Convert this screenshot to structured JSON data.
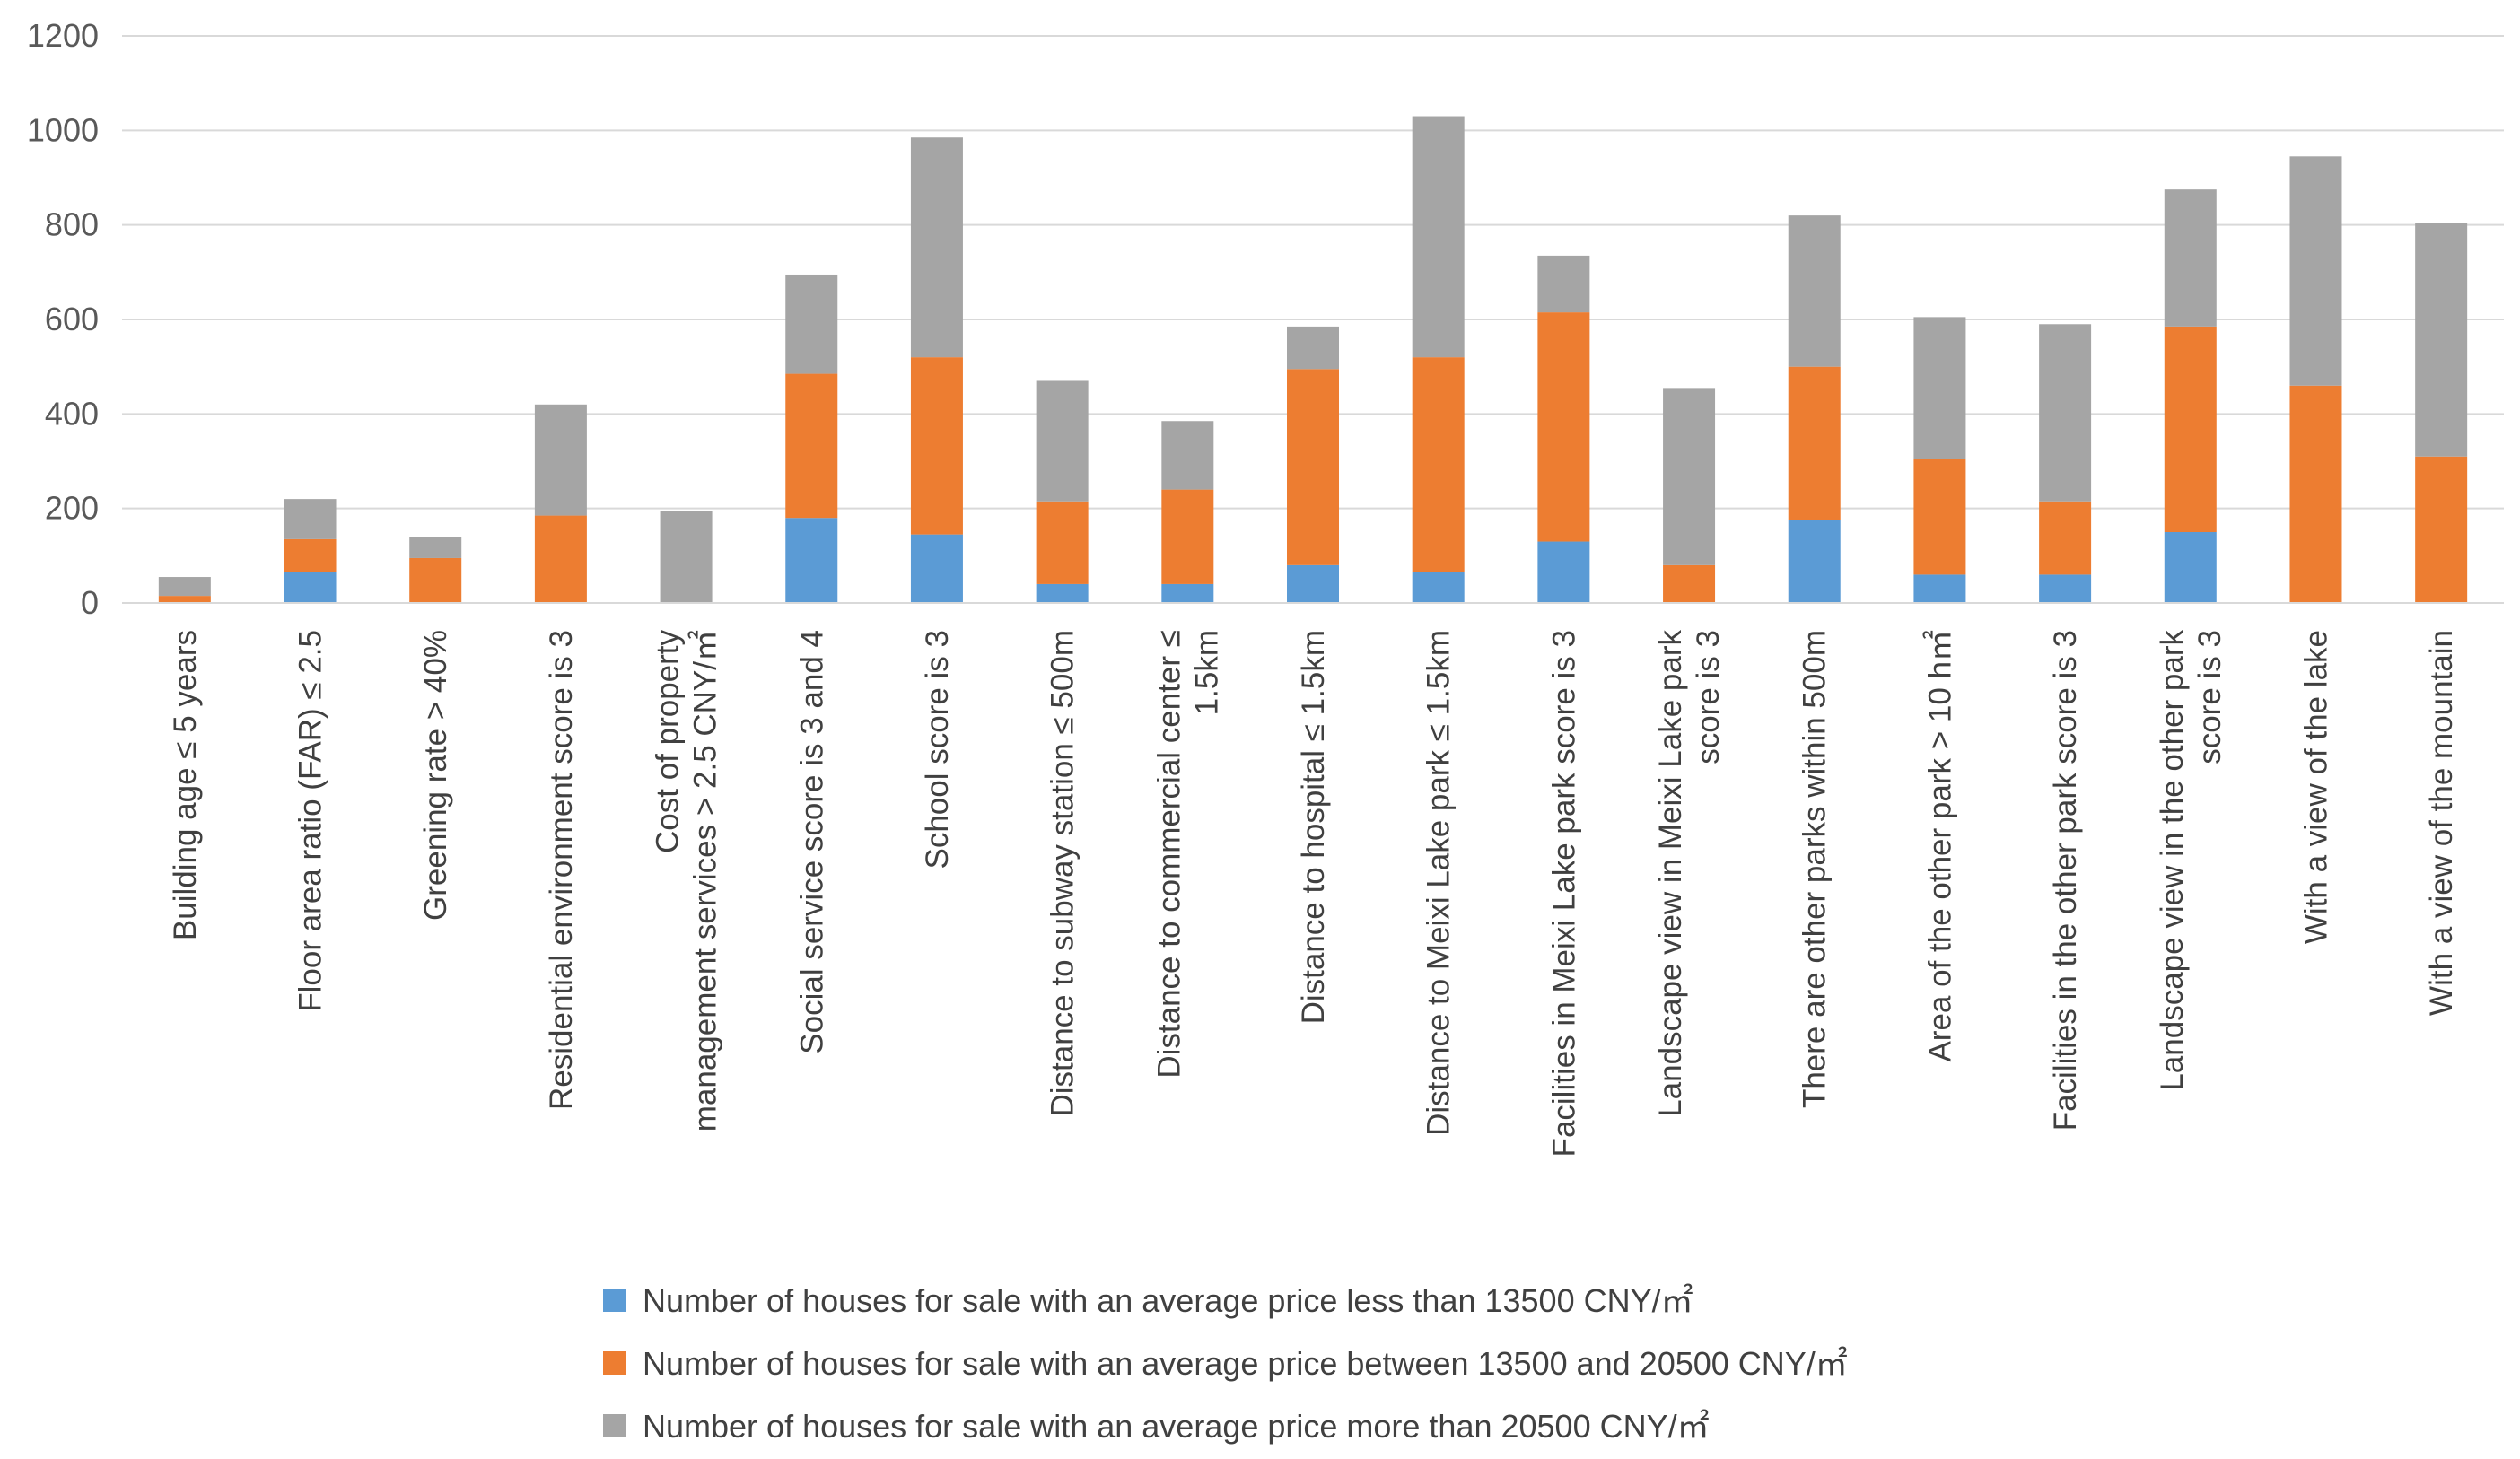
{
  "chart_data": {
    "type": "bar",
    "stacked": true,
    "title": "",
    "xlabel": "",
    "ylabel": "",
    "ylim": [
      0,
      1200
    ],
    "yticks": [
      0,
      200,
      400,
      600,
      800,
      1000,
      1200
    ],
    "grid": true,
    "legend_position": "bottom",
    "categories": [
      [
        "Building age ≤ 5 years"
      ],
      [
        "Floor area ratio (FAR) ≤ 2.5"
      ],
      [
        "Greening rate > 40%"
      ],
      [
        "Residential environment score is 3"
      ],
      [
        "Cost of property",
        "management services > 2.5 CNY/㎡"
      ],
      [
        "Social service score is 3 and 4"
      ],
      [
        "School score is 3"
      ],
      [
        "Distance to subway station ≤ 500m"
      ],
      [
        "Distance to commercial center ≤",
        "1.5km"
      ],
      [
        "Distance to hospital ≤ 1.5km"
      ],
      [
        "Distance to Meixi Lake park ≤ 1.5km"
      ],
      [
        "Facilities in Meixi Lake park score is 3"
      ],
      [
        "Landscape view in Meixi Lake park",
        "score is 3"
      ],
      [
        "There are other parks within 500m"
      ],
      [
        "Area of the other park > 10 h㎡"
      ],
      [
        "Facilities in the other park score is 3"
      ],
      [
        "Landscape view in the other park",
        "score is 3"
      ],
      [
        "With a view of the lake"
      ],
      [
        "With a view of the mountain"
      ]
    ],
    "series": [
      {
        "name": "Number of houses for sale with an average price less than 13500 CNY/㎡",
        "color": "#5B9BD5",
        "values": [
          0,
          65,
          0,
          0,
          0,
          180,
          145,
          40,
          40,
          80,
          65,
          130,
          0,
          175,
          60,
          60,
          150,
          0,
          0
        ]
      },
      {
        "name": "Number of houses for sale with an average price between 13500 and 20500 CNY/㎡",
        "color": "#ED7D31",
        "values": [
          15,
          70,
          95,
          185,
          0,
          305,
          375,
          175,
          200,
          415,
          455,
          485,
          80,
          325,
          245,
          155,
          435,
          460,
          310
        ]
      },
      {
        "name": "Number of houses for sale with an average price more than 20500 CNY/㎡",
        "color": "#A5A5A5",
        "values": [
          40,
          85,
          45,
          235,
          195,
          210,
          465,
          255,
          145,
          90,
          510,
          120,
          375,
          320,
          300,
          375,
          290,
          485,
          495
        ]
      }
    ]
  }
}
